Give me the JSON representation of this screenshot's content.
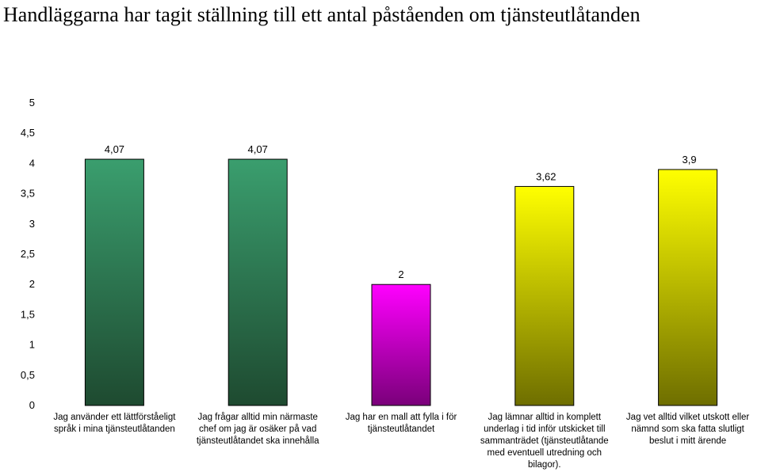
{
  "chart_data": {
    "type": "bar",
    "title": "Handläggarna har tagit ställning till ett antal påståenden om tjänsteutlåtanden",
    "xlabel": "",
    "ylabel": "",
    "ylim": [
      0,
      5
    ],
    "yticks": [
      "0",
      "0,5",
      "1",
      "1,5",
      "2",
      "2,5",
      "3",
      "3,5",
      "4",
      "4,5",
      "5"
    ],
    "grid": false,
    "legend": "none",
    "categories": [
      "Jag använder ett lättförståeligt språk i mina tjänsteutlåtanden",
      "Jag frågar alltid min närmaste chef om jag är osäker på vad tjänsteutlåtandet ska innehålla",
      "Jag har en mall att fylla i för tjänsteutlåtandet",
      "Jag lämnar alltid in komplett underlag i tid inför utskicket till sammanträdet (tjänsteutlåtande med eventuell utredning och bilagor).",
      "Jag vet alltid vilket utskott eller nämnd som ska fatta slutligt beslut i mitt ärende"
    ],
    "values": [
      4.07,
      4.07,
      2,
      3.62,
      3.9
    ],
    "value_labels": [
      "4,07",
      "4,07",
      "2",
      "3,62",
      "3,9"
    ],
    "bar_colors": [
      [
        "#3a9e6e",
        "#1e4a30"
      ],
      [
        "#3a9e6e",
        "#1e4a30"
      ],
      [
        "#ff00ff",
        "#7a007a"
      ],
      [
        "#ffff00",
        "#6e6e00"
      ],
      [
        "#ffff00",
        "#6e6e00"
      ]
    ]
  }
}
